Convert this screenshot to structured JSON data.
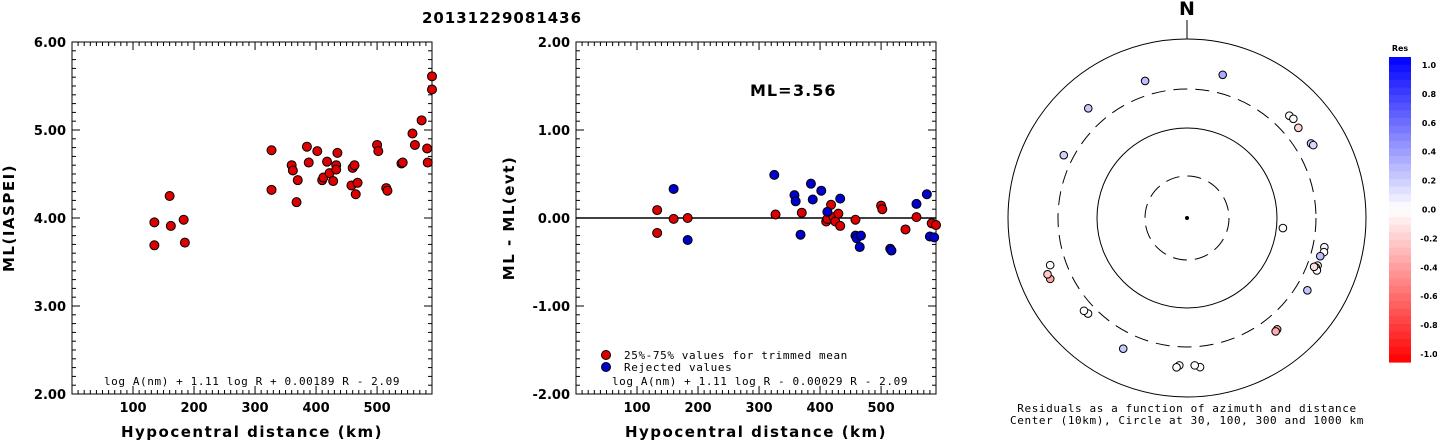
{
  "title": "20131229081436",
  "chart_data": [
    {
      "type": "scatter",
      "panel": "left",
      "ylabel": "ML(IASPEI)",
      "xlabel": "Hypocentral distance (km)",
      "xlim": [
        0,
        590
      ],
      "ylim": [
        2.0,
        6.0
      ],
      "xticks": [
        "100",
        "200",
        "300",
        "400",
        "500"
      ],
      "yticks": [
        "2.00",
        "3.00",
        "4.00",
        "5.00",
        "6.00"
      ],
      "formula": "log A(nm) + 1.11 log R + 0.00189 R - 2.09",
      "point_color": "#dd0000",
      "points": [
        [
          135,
          3.95
        ],
        [
          135,
          3.69
        ],
        [
          160,
          4.25
        ],
        [
          162,
          3.91
        ],
        [
          183,
          3.98
        ],
        [
          185,
          3.72
        ],
        [
          327,
          4.77
        ],
        [
          327,
          4.32
        ],
        [
          360,
          4.6
        ],
        [
          362,
          4.54
        ],
        [
          368,
          4.18
        ],
        [
          370,
          4.43
        ],
        [
          385,
          4.81
        ],
        [
          388,
          4.63
        ],
        [
          402,
          4.76
        ],
        [
          410,
          4.43
        ],
        [
          412,
          4.46
        ],
        [
          418,
          4.64
        ],
        [
          422,
          4.51
        ],
        [
          428,
          4.42
        ],
        [
          433,
          4.6
        ],
        [
          433,
          4.55
        ],
        [
          435,
          4.74
        ],
        [
          458,
          4.37
        ],
        [
          460,
          4.57
        ],
        [
          463,
          4.6
        ],
        [
          465,
          4.27
        ],
        [
          468,
          4.4
        ],
        [
          500,
          4.83
        ],
        [
          502,
          4.76
        ],
        [
          515,
          4.34
        ],
        [
          517,
          4.31
        ],
        [
          540,
          4.62
        ],
        [
          542,
          4.63
        ],
        [
          558,
          4.96
        ],
        [
          562,
          4.83
        ],
        [
          573,
          5.11
        ],
        [
          582,
          4.79
        ],
        [
          583,
          4.63
        ],
        [
          590,
          5.61
        ],
        [
          590,
          5.46
        ]
      ]
    },
    {
      "type": "scatter",
      "panel": "middle",
      "ylabel": "ML - ML(evt)",
      "xlabel": "Hypocentral distance (km)",
      "xlim": [
        0,
        590
      ],
      "ylim": [
        -2.0,
        2.0
      ],
      "xticks": [
        "100",
        "200",
        "300",
        "400",
        "500"
      ],
      "yticks": [
        "-2.00",
        "-1.00",
        "0.00",
        "1.00",
        "2.00"
      ],
      "ml_label": "ML=",
      "ml_value": "3.56",
      "formula": "log A(nm) + 1.11 log R - 0.00029 R - 2.09",
      "legend": [
        "25%-75% values for trimmed mean",
        "Rejected values"
      ],
      "legend_colors": [
        "#dd0000",
        "#0000cc"
      ],
      "series": [
        {
          "name": "25%-75% values for trimmed mean",
          "points": [
            [
              133,
              0.09
            ],
            [
              133,
              -0.17
            ],
            [
              160,
              -0.01
            ],
            [
              183,
              0.0
            ],
            [
              327,
              0.04
            ],
            [
              370,
              0.06
            ],
            [
              410,
              -0.04
            ],
            [
              412,
              -0.01
            ],
            [
              418,
              0.15
            ],
            [
              422,
              0.01
            ],
            [
              425,
              -0.04
            ],
            [
              430,
              0.05
            ],
            [
              433,
              -0.09
            ],
            [
              458,
              -0.02
            ],
            [
              500,
              0.14
            ],
            [
              502,
              0.1
            ],
            [
              540,
              -0.13
            ],
            [
              558,
              0.01
            ],
            [
              583,
              -0.06
            ],
            [
              590,
              -0.08
            ]
          ]
        },
        {
          "name": "Rejected values",
          "points": [
            [
              160,
              0.33
            ],
            [
              183,
              -0.25
            ],
            [
              325,
              0.49
            ],
            [
              358,
              0.26
            ],
            [
              360,
              0.19
            ],
            [
              368,
              -0.19
            ],
            [
              385,
              0.39
            ],
            [
              388,
              0.21
            ],
            [
              402,
              0.31
            ],
            [
              412,
              0.07
            ],
            [
              433,
              0.22
            ],
            [
              458,
              -0.2
            ],
            [
              460,
              -0.23
            ],
            [
              465,
              -0.33
            ],
            [
              467,
              -0.2
            ],
            [
              515,
              -0.35
            ],
            [
              517,
              -0.37
            ],
            [
              558,
              0.16
            ],
            [
              575,
              0.27
            ],
            [
              580,
              -0.21
            ],
            [
              587,
              -0.22
            ]
          ]
        }
      ]
    },
    {
      "type": "scatter",
      "panel": "right",
      "north_label": "N",
      "caption_line1": "Residuals as a function of azimuth and distance",
      "caption_line2": "Center (10km), Circle at 30, 100, 300 and 1000 km",
      "colorbar_title": "Res",
      "colorbar_ticks": [
        "1.0",
        "0.8",
        "0.6",
        "0.4",
        "0.2",
        "0.0",
        "-0.2",
        "-0.4",
        "-0.6",
        "-0.8",
        "-1.0"
      ],
      "colorbar_range": [
        -1.0,
        1.0
      ],
      "circle_radii_km": [
        30,
        100,
        300,
        1000
      ],
      "dashed_circles_km": [
        30,
        300
      ],
      "stations": [
        {
          "az": 14,
          "dist": 560,
          "res": 0.33
        },
        {
          "az": 343,
          "dist": 500,
          "res": 0.26
        },
        {
          "az": 318,
          "dist": 560,
          "res": 0.22
        },
        {
          "az": 45,
          "dist": 520,
          "res": 0.0
        },
        {
          "az": 47,
          "dist": 530,
          "res": 0.01
        },
        {
          "az": 51,
          "dist": 500,
          "res": -0.17
        },
        {
          "az": 59,
          "dist": 520,
          "res": 0.19
        },
        {
          "az": 60,
          "dist": 535,
          "res": 0.15
        },
        {
          "az": 297,
          "dist": 430,
          "res": 0.19
        },
        {
          "az": 96,
          "dist": 133,
          "res": 0.01
        },
        {
          "az": 102,
          "dist": 460,
          "res": 0.04
        },
        {
          "az": 104,
          "dist": 470,
          "res": 0.0
        },
        {
          "az": 106,
          "dist": 435,
          "res": 0.26
        },
        {
          "az": 110,
          "dist": 440,
          "res": 0.1
        },
        {
          "az": 111,
          "dist": 425,
          "res": -0.08
        },
        {
          "az": 112,
          "dist": 455,
          "res": 0.02
        },
        {
          "az": 111,
          "dist": 400,
          "res": -0.13
        },
        {
          "az": 121,
          "dist": 460,
          "res": 0.23
        },
        {
          "az": 141,
          "dist": 500,
          "res": -0.38
        },
        {
          "az": 142,
          "dist": 510,
          "res": -0.32
        },
        {
          "az": 175,
          "dist": 590,
          "res": 0.01
        },
        {
          "az": 177,
          "dist": 560,
          "res": 0.0
        },
        {
          "az": 183,
          "dist": 560,
          "res": 0.0
        },
        {
          "az": 184,
          "dist": 590,
          "res": 0.0
        },
        {
          "az": 206,
          "dist": 530,
          "res": 0.22
        },
        {
          "az": 226,
          "dist": 420,
          "res": 0.0
        },
        {
          "az": 228,
          "dist": 435,
          "res": 0.0
        },
        {
          "az": 246,
          "dist": 590,
          "res": -0.35
        },
        {
          "az": 248,
          "dist": 600,
          "res": -0.22
        },
        {
          "az": 251,
          "dist": 520,
          "res": 0.0
        }
      ]
    }
  ]
}
